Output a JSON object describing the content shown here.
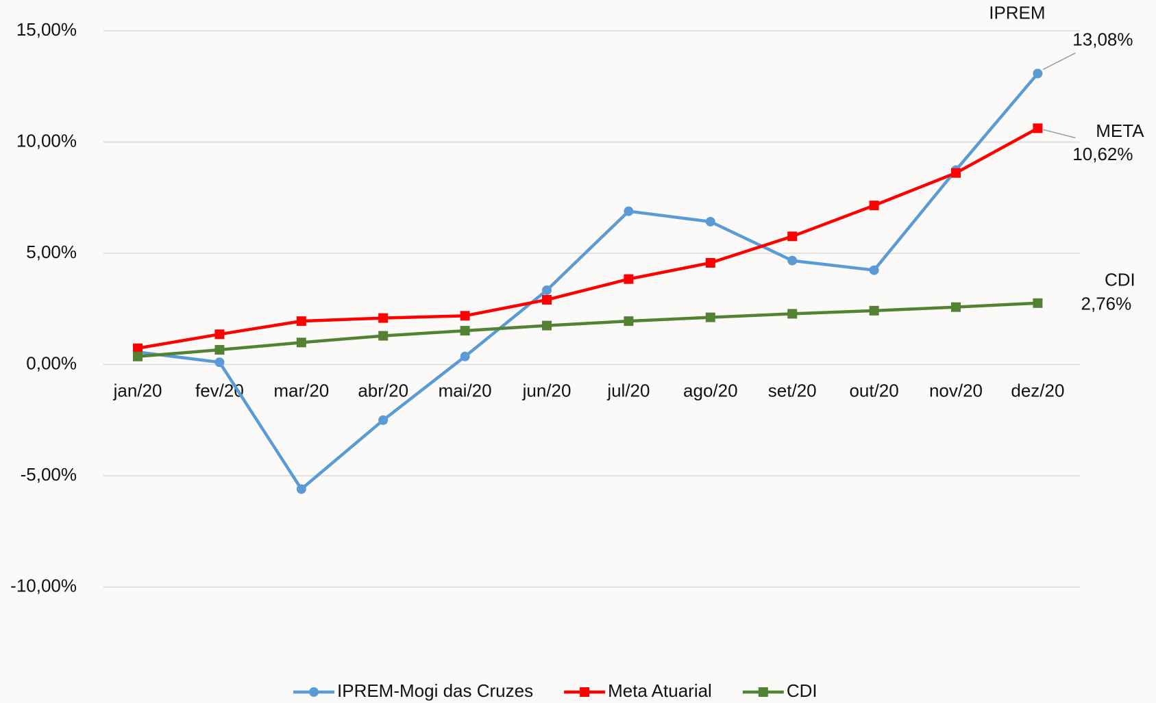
{
  "chart_data": {
    "type": "line",
    "categories": [
      "jan/20",
      "fev/20",
      "mar/20",
      "abr/20",
      "mai/20",
      "jun/20",
      "jul/20",
      "ago/20",
      "set/20",
      "out/20",
      "nov/20",
      "dez/20"
    ],
    "ylim": [
      -15,
      15
    ],
    "yticks": [
      {
        "value": -10,
        "label": "-10,00%"
      },
      {
        "value": -5,
        "label": "-5,00%"
      },
      {
        "value": 0,
        "label": "0,00%"
      },
      {
        "value": 5,
        "label": "5,00%"
      },
      {
        "value": 10,
        "label": "10,00%"
      },
      {
        "value": 15,
        "label": "15,00%"
      }
    ],
    "grid": true,
    "legend": "bottom",
    "series": [
      {
        "name": "IPREM-Mogi das Cruzes",
        "tag": "IPREM",
        "color": "#5b9bd5",
        "marker": "circle",
        "values": [
          0.56,
          0.1,
          -5.6,
          -2.5,
          0.36,
          3.34,
          6.89,
          6.42,
          4.67,
          4.24,
          8.74,
          13.08
        ],
        "value_labels": [
          null,
          null,
          null,
          null,
          null,
          null,
          null,
          null,
          null,
          null,
          null,
          "13,08%"
        ]
      },
      {
        "name": "Meta Atuarial",
        "tag": "META",
        "color": "#ff0000",
        "marker": "square",
        "values": [
          0.73,
          1.36,
          1.95,
          2.09,
          2.19,
          2.91,
          3.84,
          4.57,
          5.76,
          7.15,
          8.61,
          10.62
        ],
        "value_labels": [
          null,
          null,
          null,
          null,
          null,
          null,
          null,
          null,
          null,
          null,
          null,
          "10,62%"
        ]
      },
      {
        "name": "CDI",
        "tag": "CDI",
        "color": "#548235",
        "marker": "square",
        "values": [
          0.36,
          0.66,
          0.99,
          1.29,
          1.52,
          1.75,
          1.95,
          2.12,
          2.28,
          2.42,
          2.58,
          2.76
        ],
        "value_labels": [
          null,
          null,
          null,
          null,
          null,
          null,
          null,
          null,
          null,
          null,
          null,
          "2,76%"
        ]
      }
    ]
  }
}
